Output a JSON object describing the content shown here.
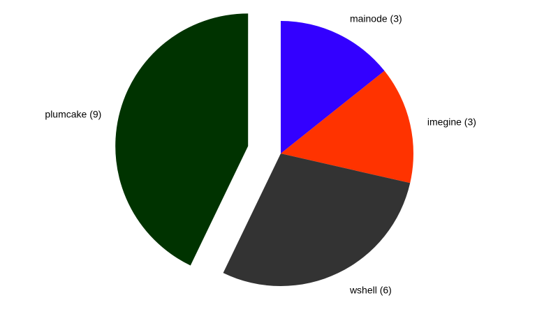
{
  "chart_data": {
    "type": "pie",
    "title": "",
    "start_angle_deg": 0,
    "direction": "clockwise",
    "slices": [
      {
        "name": "mainode",
        "value": 3,
        "label": "mainode (3)",
        "color": "#3300ff",
        "exploded": false
      },
      {
        "name": "imegine",
        "value": 3,
        "label": "imegine (3)",
        "color": "#ff3300",
        "exploded": false
      },
      {
        "name": "wshell",
        "value": 6,
        "label": "wshell (6)",
        "color": "#333333",
        "exploded": false
      },
      {
        "name": "plumcake",
        "value": 9,
        "label": "plumcake (9)",
        "color": "#003300",
        "exploded": true
      }
    ],
    "legend": "none"
  }
}
